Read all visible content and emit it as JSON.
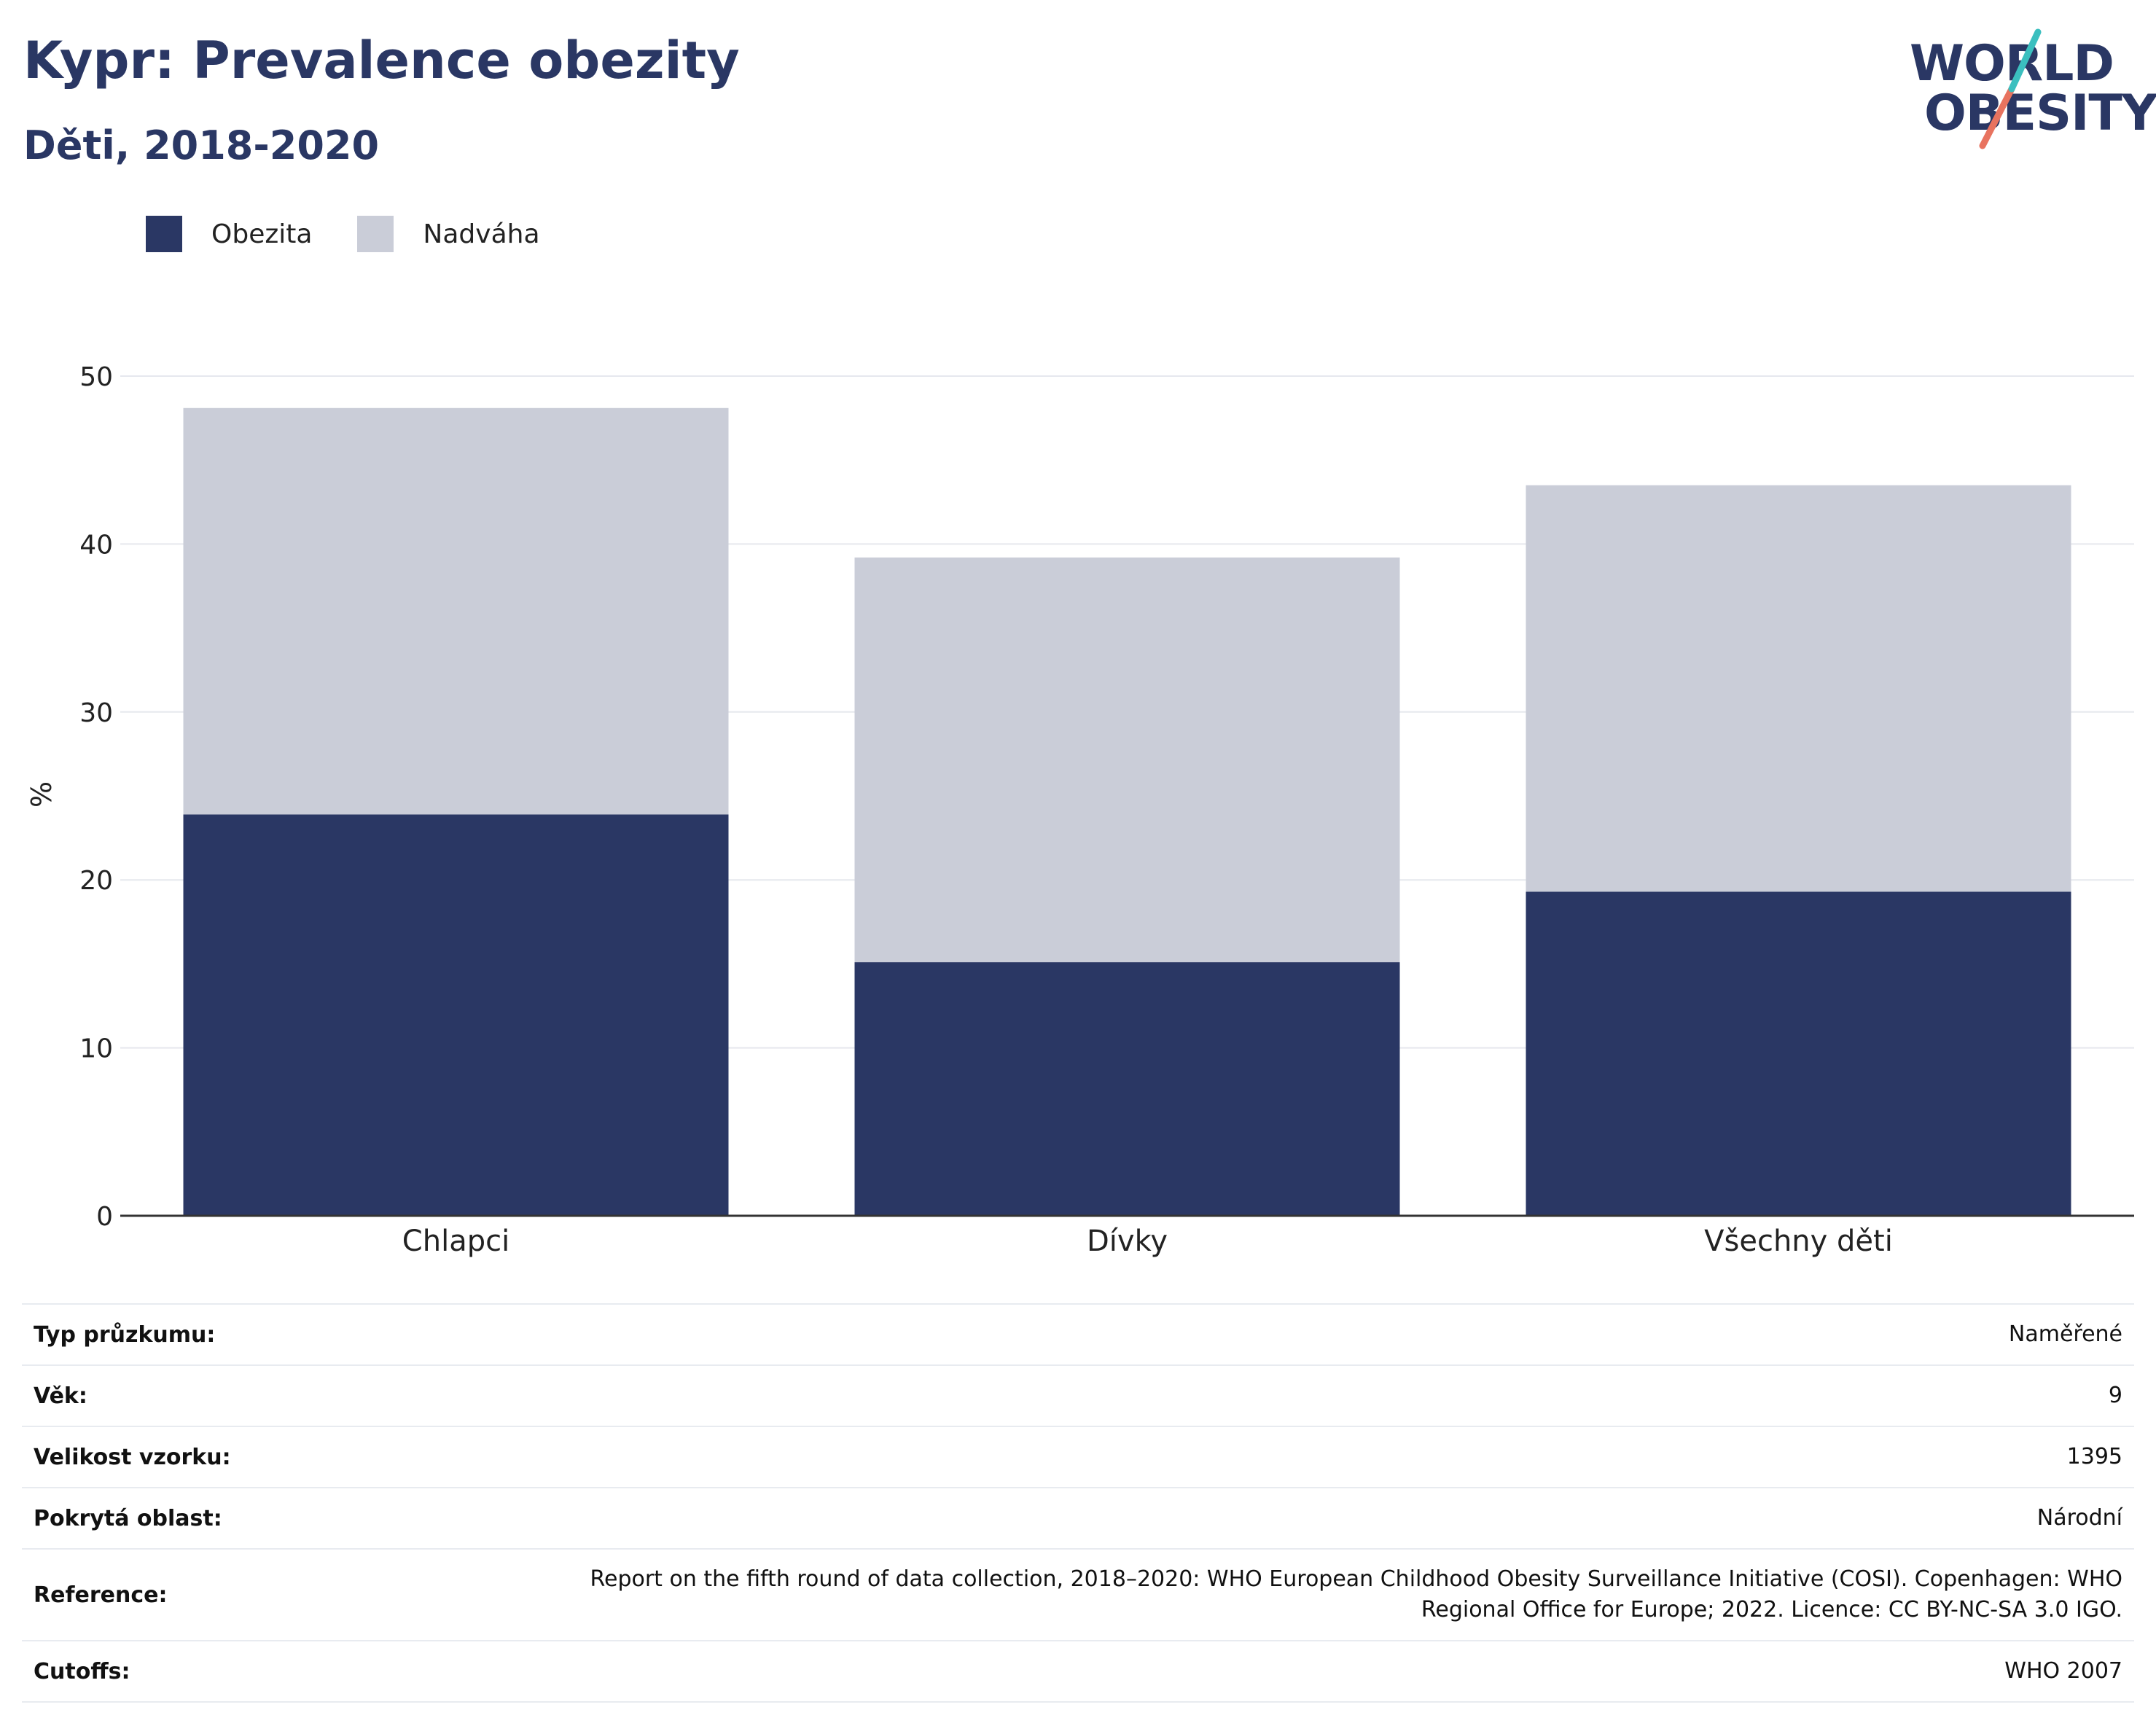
{
  "header": {
    "title": "Kypr: Prevalence obezity",
    "subtitle": "Děti, 2018-2020"
  },
  "logo": {
    "line1": "WORLD",
    "line2": "OBESITY"
  },
  "colors": {
    "obesity": "#2a3764",
    "overweight": "#cacdd8",
    "logo_teal": "#3bbfbf",
    "logo_coral": "#e8735f"
  },
  "chart_data": {
    "type": "bar",
    "stacked": true,
    "categories": [
      "Chlapci",
      "Dívky",
      "Všechny děti"
    ],
    "series": [
      {
        "name": "Obezita",
        "values": [
          23.9,
          15.1,
          19.3
        ],
        "color": "#2a3764"
      },
      {
        "name": "Nadváha",
        "values": [
          24.2,
          24.1,
          24.2
        ],
        "color": "#cacdd8"
      }
    ],
    "ylabel": "%",
    "ylim": [
      0,
      50
    ],
    "yticks": [
      0,
      10,
      20,
      30,
      40,
      50
    ],
    "grid": true,
    "legend": "top-left"
  },
  "info": [
    {
      "label": "Typ průzkumu:",
      "value": "Naměřené"
    },
    {
      "label": "Věk:",
      "value": "9"
    },
    {
      "label": "Velikost vzorku:",
      "value": "1395"
    },
    {
      "label": "Pokrytá oblast:",
      "value": "Národní"
    },
    {
      "label": "Reference:",
      "value": "Report on the fifth round of data collection, 2018–2020: WHO European Childhood Obesity Surveillance Initiative (COSI). Copenhagen: WHO Regional Office for Europe; 2022. Licence: CC BY-NC-SA 3.0 IGO."
    },
    {
      "label": "Cutoffs:",
      "value": "WHO 2007"
    }
  ]
}
